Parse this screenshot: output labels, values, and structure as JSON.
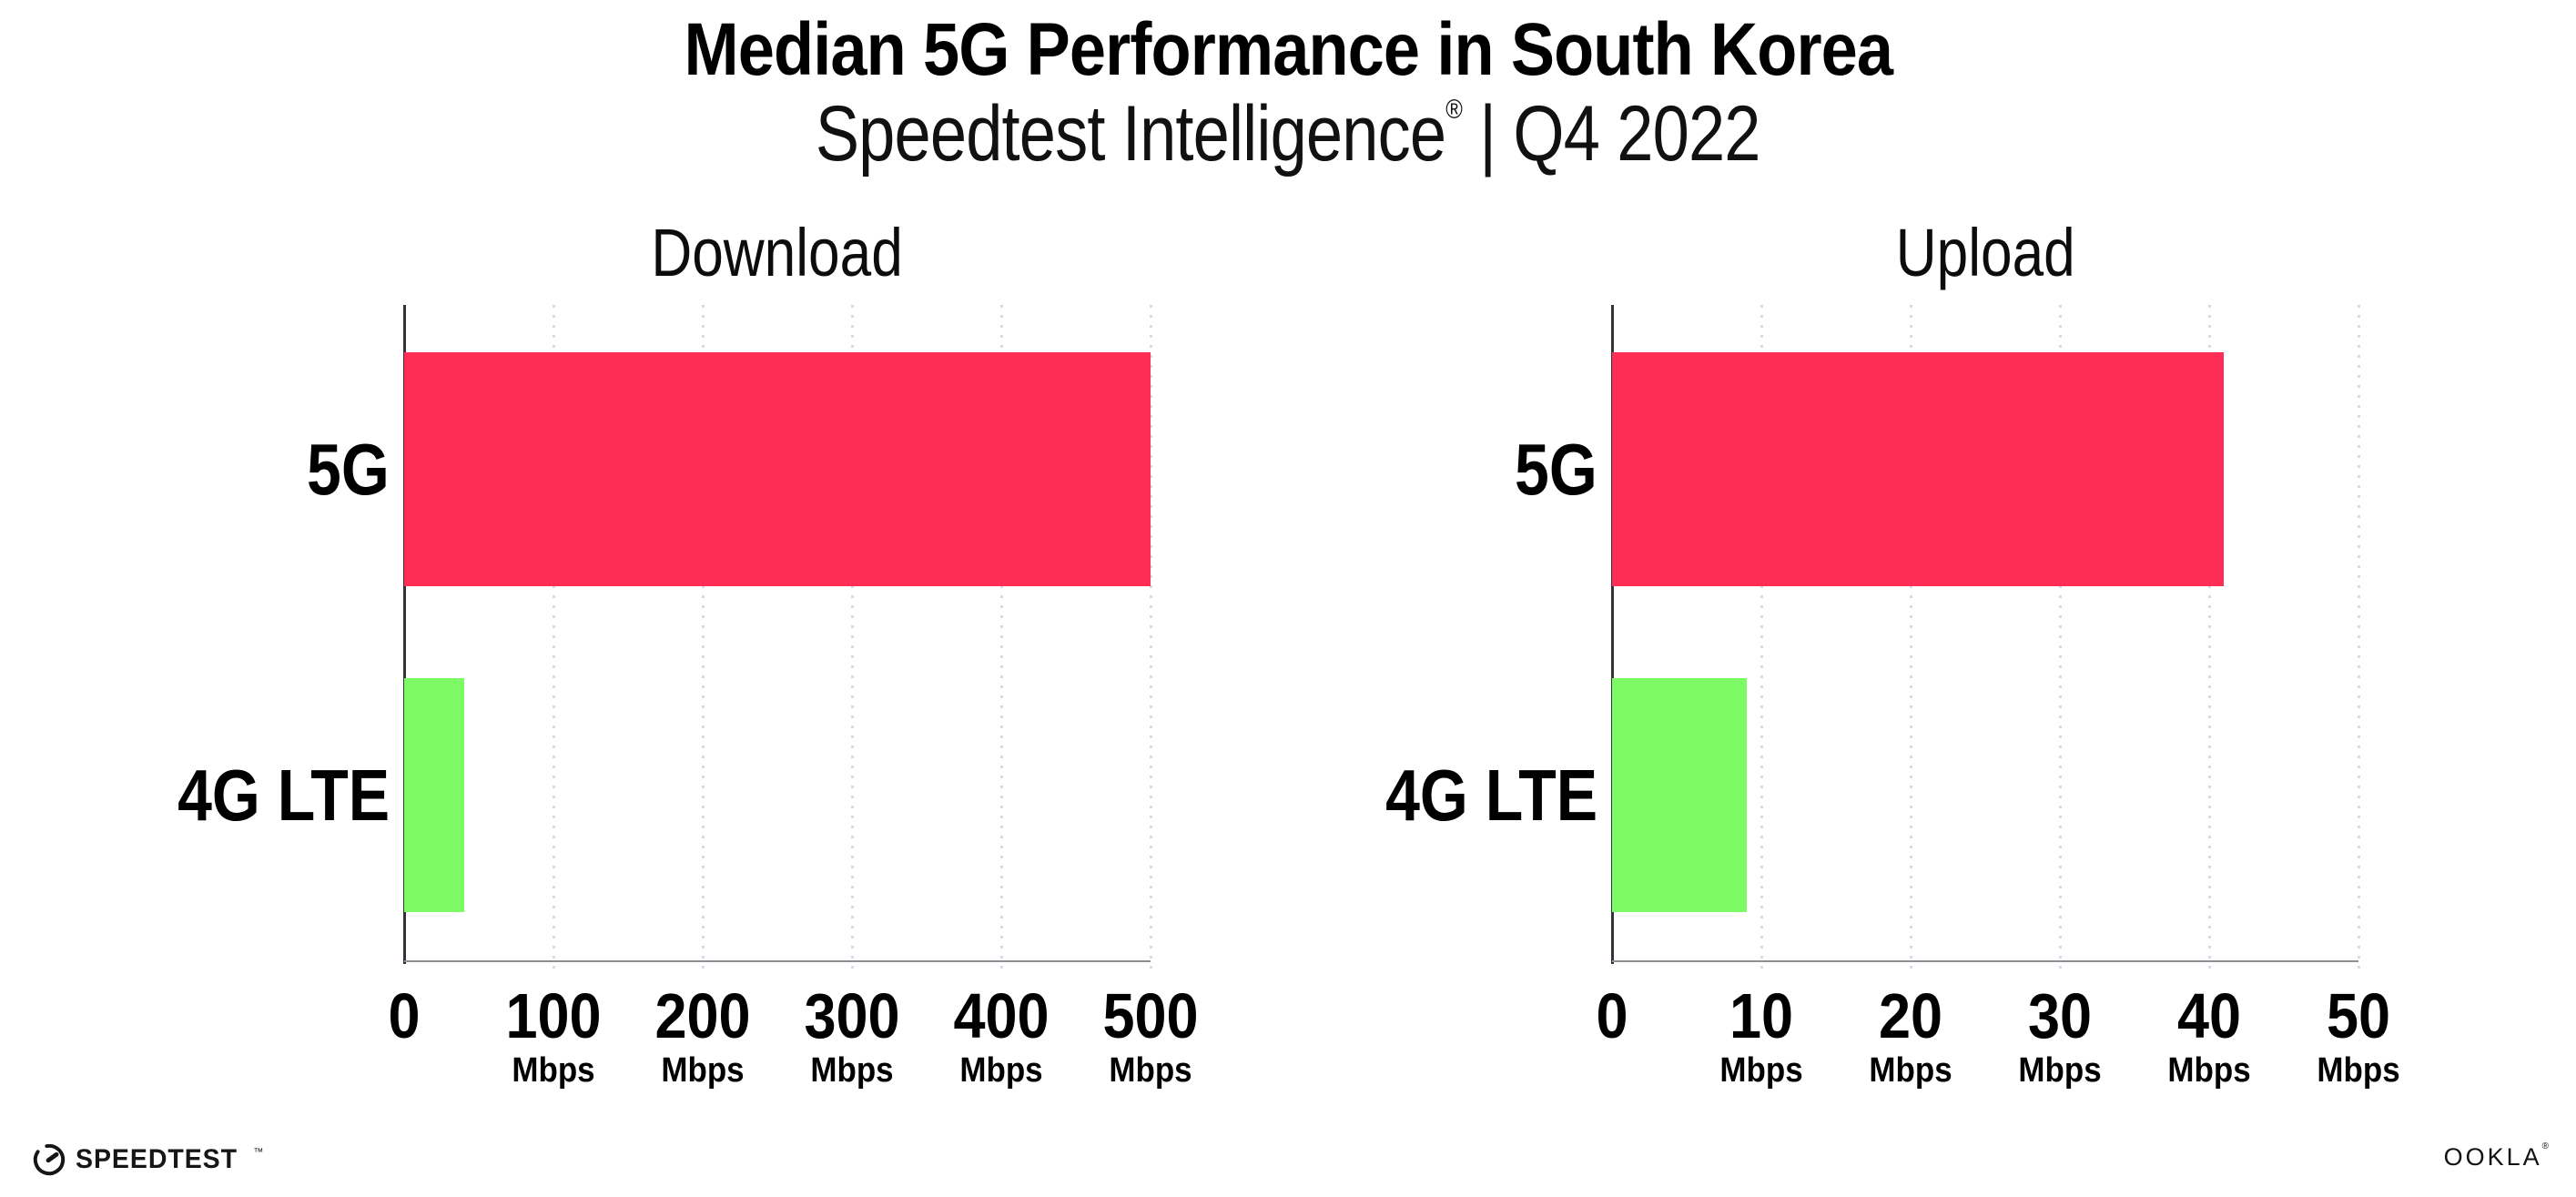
{
  "header": {
    "title": "Median 5G Performance in South Korea",
    "subtitle_brand": "Speedtest Intelligence",
    "subtitle_reg": "®",
    "subtitle_rest": " | Q4 2022"
  },
  "chart_data": [
    {
      "type": "bar",
      "orientation": "horizontal",
      "title": "Download",
      "categories": [
        "5G",
        "4G LTE"
      ],
      "values": [
        500,
        40
      ],
      "unit": "Mbps",
      "xlim": [
        0,
        500
      ],
      "ticks": [
        0,
        100,
        200,
        300,
        400,
        500
      ],
      "bar_colors": [
        "#FD2D55",
        "#7DFB66"
      ],
      "grid": "dotted-vertical",
      "legend": "none"
    },
    {
      "type": "bar",
      "orientation": "horizontal",
      "title": "Upload",
      "categories": [
        "5G",
        "4G LTE"
      ],
      "values": [
        41,
        9
      ],
      "unit": "Mbps",
      "xlim": [
        0,
        50
      ],
      "ticks": [
        0,
        10,
        20,
        30,
        40,
        50
      ],
      "bar_colors": [
        "#FD2D55",
        "#7DFB66"
      ],
      "grid": "dotted-vertical",
      "legend": "none"
    }
  ],
  "footer": {
    "speedtest_label": "SPEEDTEST",
    "speedtest_mark": "™",
    "ookla_label": "OOKLA",
    "ookla_mark": "®",
    "speedtest_icon_color": "#161616"
  },
  "style_colors": {
    "bar_5g": "#FD2D55",
    "bar_4g": "#7DFB66",
    "y_axis": "#32323a",
    "x_axis": "#8e8e96",
    "gridline": "#d9dae6",
    "text": "#000000"
  }
}
